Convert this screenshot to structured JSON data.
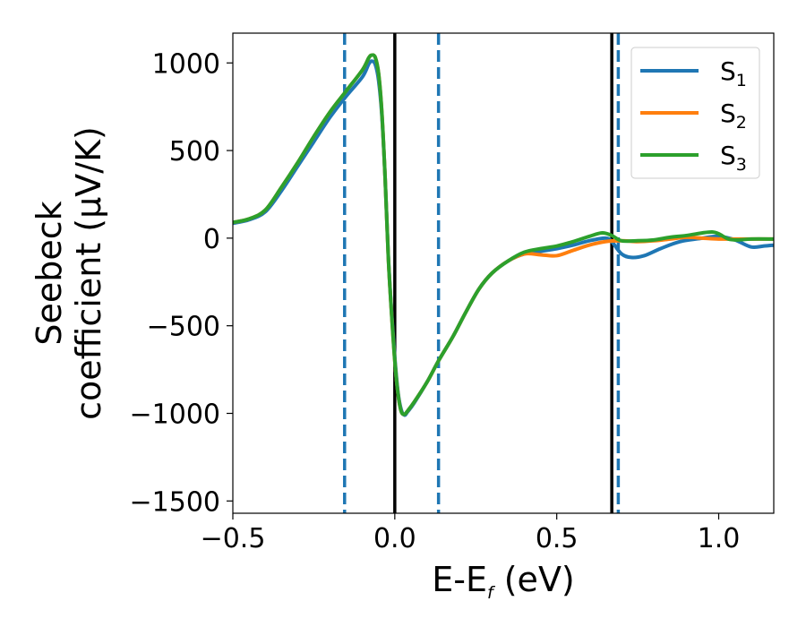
{
  "chart_data": {
    "type": "line",
    "xlabel": {
      "main": "E-E",
      "sub": "f",
      "unit": " (eV)"
    },
    "ylabel": {
      "line1": "Seebeck",
      "line2": "coefficient  (μV/K)"
    },
    "xlim": [
      -0.5,
      1.17
    ],
    "ylim": [
      -1570,
      1170
    ],
    "xticks": [
      {
        "value": -0.5,
        "label": "−0.5"
      },
      {
        "value": 0.0,
        "label": "0.0"
      },
      {
        "value": 0.5,
        "label": "0.5"
      },
      {
        "value": 1.0,
        "label": "1.0"
      }
    ],
    "yticks": [
      {
        "value": 1000,
        "label": "1000"
      },
      {
        "value": 500,
        "label": "500"
      },
      {
        "value": 0,
        "label": "0"
      },
      {
        "value": -500,
        "label": "−500"
      },
      {
        "value": -1000,
        "label": "−1000"
      },
      {
        "value": -1500,
        "label": "−1500"
      }
    ],
    "grid": false,
    "legend_position": "top-right",
    "vlines": [
      {
        "x": -0.155,
        "color": "#1f77b4",
        "style": "dashed"
      },
      {
        "x": 0.0,
        "color": "#000000",
        "style": "solid"
      },
      {
        "x": 0.135,
        "color": "#1f77b4",
        "style": "dashed"
      },
      {
        "x": 0.67,
        "color": "#000000",
        "style": "solid"
      },
      {
        "x": 0.69,
        "color": "#1f77b4",
        "style": "dashed"
      }
    ],
    "series": [
      {
        "name": "S",
        "sub": "1",
        "color": "#1f77b4",
        "points": [
          [
            -0.5,
            85
          ],
          [
            -0.45,
            105
          ],
          [
            -0.4,
            150
          ],
          [
            -0.35,
            270
          ],
          [
            -0.3,
            410
          ],
          [
            -0.25,
            550
          ],
          [
            -0.2,
            690
          ],
          [
            -0.15,
            810
          ],
          [
            -0.1,
            920
          ],
          [
            -0.08,
            995
          ],
          [
            -0.07,
            1010
          ],
          [
            -0.06,
            990
          ],
          [
            -0.05,
            900
          ],
          [
            -0.04,
            700
          ],
          [
            -0.03,
            350
          ],
          [
            -0.02,
            -100
          ],
          [
            -0.01,
            -420
          ],
          [
            0.0,
            -680
          ],
          [
            0.01,
            -880
          ],
          [
            0.02,
            -980
          ],
          [
            0.03,
            -1010
          ],
          [
            0.04,
            -990
          ],
          [
            0.06,
            -940
          ],
          [
            0.1,
            -820
          ],
          [
            0.135,
            -700
          ],
          [
            0.18,
            -560
          ],
          [
            0.22,
            -420
          ],
          [
            0.26,
            -290
          ],
          [
            0.3,
            -200
          ],
          [
            0.35,
            -130
          ],
          [
            0.4,
            -90
          ],
          [
            0.45,
            -75
          ],
          [
            0.5,
            -60
          ],
          [
            0.55,
            -40
          ],
          [
            0.6,
            -15
          ],
          [
            0.65,
            0
          ],
          [
            0.67,
            -20
          ],
          [
            0.7,
            -90
          ],
          [
            0.73,
            -110
          ],
          [
            0.77,
            -100
          ],
          [
            0.82,
            -60
          ],
          [
            0.88,
            -20
          ],
          [
            0.95,
            0
          ],
          [
            1.0,
            10
          ],
          [
            1.05,
            -10
          ],
          [
            1.1,
            -50
          ],
          [
            1.14,
            -45
          ],
          [
            1.17,
            -40
          ]
        ]
      },
      {
        "name": "S",
        "sub": "2",
        "color": "#ff7f0e",
        "points": [
          [
            -0.5,
            90
          ],
          [
            -0.45,
            110
          ],
          [
            -0.4,
            160
          ],
          [
            -0.35,
            290
          ],
          [
            -0.3,
            430
          ],
          [
            -0.25,
            580
          ],
          [
            -0.2,
            720
          ],
          [
            -0.15,
            840
          ],
          [
            -0.1,
            960
          ],
          [
            -0.08,
            1030
          ],
          [
            -0.07,
            1045
          ],
          [
            -0.06,
            1030
          ],
          [
            -0.05,
            940
          ],
          [
            -0.04,
            720
          ],
          [
            -0.03,
            350
          ],
          [
            -0.02,
            -110
          ],
          [
            -0.01,
            -430
          ],
          [
            0.0,
            -700
          ],
          [
            0.01,
            -890
          ],
          [
            0.02,
            -990
          ],
          [
            0.03,
            -1005
          ],
          [
            0.04,
            -985
          ],
          [
            0.06,
            -935
          ],
          [
            0.1,
            -820
          ],
          [
            0.135,
            -700
          ],
          [
            0.18,
            -560
          ],
          [
            0.22,
            -420
          ],
          [
            0.26,
            -290
          ],
          [
            0.3,
            -200
          ],
          [
            0.35,
            -130
          ],
          [
            0.4,
            -90
          ],
          [
            0.45,
            -95
          ],
          [
            0.5,
            -100
          ],
          [
            0.55,
            -70
          ],
          [
            0.6,
            -40
          ],
          [
            0.65,
            -20
          ],
          [
            0.7,
            -15
          ],
          [
            0.75,
            -20
          ],
          [
            0.8,
            -15
          ],
          [
            0.85,
            -5
          ],
          [
            0.9,
            5
          ],
          [
            0.95,
            0
          ],
          [
            1.0,
            -5
          ],
          [
            1.05,
            -5
          ],
          [
            1.1,
            -5
          ],
          [
            1.17,
            -5
          ]
        ]
      },
      {
        "name": "S",
        "sub": "3",
        "color": "#2ca02c",
        "points": [
          [
            -0.5,
            90
          ],
          [
            -0.45,
            110
          ],
          [
            -0.4,
            160
          ],
          [
            -0.35,
            290
          ],
          [
            -0.3,
            430
          ],
          [
            -0.25,
            580
          ],
          [
            -0.2,
            720
          ],
          [
            -0.15,
            840
          ],
          [
            -0.1,
            960
          ],
          [
            -0.08,
            1030
          ],
          [
            -0.07,
            1045
          ],
          [
            -0.06,
            1030
          ],
          [
            -0.05,
            940
          ],
          [
            -0.04,
            720
          ],
          [
            -0.03,
            350
          ],
          [
            -0.02,
            -110
          ],
          [
            -0.01,
            -430
          ],
          [
            0.0,
            -700
          ],
          [
            0.01,
            -890
          ],
          [
            0.02,
            -990
          ],
          [
            0.03,
            -1005
          ],
          [
            0.04,
            -985
          ],
          [
            0.06,
            -935
          ],
          [
            0.1,
            -820
          ],
          [
            0.135,
            -700
          ],
          [
            0.18,
            -560
          ],
          [
            0.22,
            -420
          ],
          [
            0.26,
            -290
          ],
          [
            0.3,
            -200
          ],
          [
            0.35,
            -130
          ],
          [
            0.4,
            -80
          ],
          [
            0.45,
            -60
          ],
          [
            0.5,
            -45
          ],
          [
            0.55,
            -20
          ],
          [
            0.6,
            10
          ],
          [
            0.64,
            30
          ],
          [
            0.67,
            15
          ],
          [
            0.7,
            -15
          ],
          [
            0.75,
            -15
          ],
          [
            0.8,
            -10
          ],
          [
            0.85,
            5
          ],
          [
            0.9,
            15
          ],
          [
            0.95,
            30
          ],
          [
            0.98,
            35
          ],
          [
            1.0,
            25
          ],
          [
            1.03,
            -5
          ],
          [
            1.06,
            -10
          ],
          [
            1.1,
            -5
          ],
          [
            1.17,
            -5
          ]
        ]
      }
    ]
  }
}
